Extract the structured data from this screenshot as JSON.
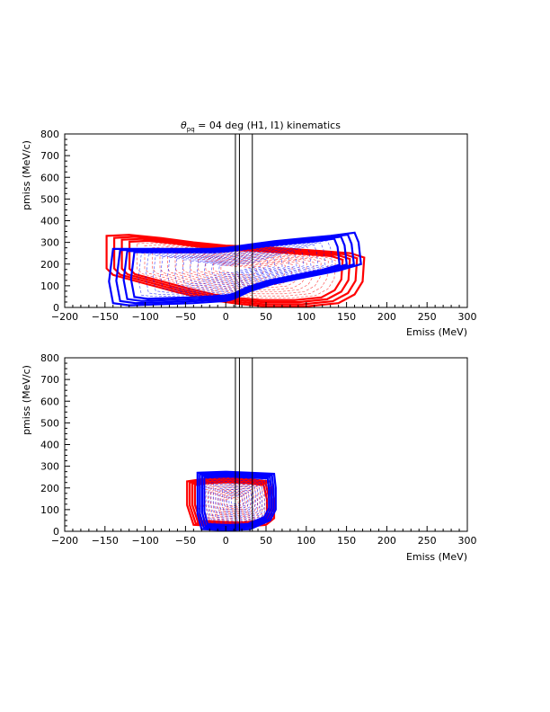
{
  "chart_data": [
    {
      "type": "contour",
      "title_pre": "θ",
      "title_sub": "pq",
      "title_post": " = 04 deg (H1, I1) kinematics",
      "xlabel": "Emiss  (MeV)",
      "ylabel": "pmiss  (MeV/c)",
      "xlim": [
        -200,
        300
      ],
      "ylim": [
        0,
        800
      ],
      "xticks": [
        -200,
        -150,
        -100,
        -50,
        0,
        50,
        100,
        150,
        200,
        250,
        300
      ],
      "yticks": [
        0,
        100,
        200,
        300,
        400,
        500,
        600,
        700,
        800
      ],
      "vertical_lines_x": [
        12,
        17,
        33
      ],
      "series": [
        {
          "color": "#ff0000",
          "outline": [
            [
              -148,
              330
            ],
            [
              -120,
              335
            ],
            [
              -80,
              320
            ],
            [
              -40,
              300
            ],
            [
              0,
              285
            ],
            [
              40,
              280
            ],
            [
              80,
              270
            ],
            [
              120,
              260
            ],
            [
              155,
              250
            ],
            [
              172,
              230
            ],
            [
              170,
              120
            ],
            [
              160,
              60
            ],
            [
              140,
              20
            ],
            [
              100,
              5
            ],
            [
              50,
              5
            ],
            [
              20,
              15
            ],
            [
              -20,
              35
            ],
            [
              -60,
              70
            ],
            [
              -100,
              110
            ],
            [
              -140,
              150
            ],
            [
              -148,
              180
            ]
          ]
        },
        {
          "color": "#0000ff",
          "outline": [
            [
              -140,
              270
            ],
            [
              -100,
              270
            ],
            [
              -60,
              270
            ],
            [
              -20,
              270
            ],
            [
              0,
              275
            ],
            [
              30,
              290
            ],
            [
              60,
              305
            ],
            [
              100,
              320
            ],
            [
              130,
              330
            ],
            [
              160,
              345
            ],
            [
              165,
              300
            ],
            [
              168,
              200
            ],
            [
              140,
              170
            ],
            [
              100,
              140
            ],
            [
              60,
              110
            ],
            [
              30,
              75
            ],
            [
              10,
              40
            ],
            [
              0,
              30
            ],
            [
              -40,
              20
            ],
            [
              -80,
              15
            ],
            [
              -120,
              10
            ],
            [
              -140,
              20
            ],
            [
              -145,
              120
            ]
          ]
        }
      ]
    },
    {
      "type": "contour",
      "xlabel": "Emiss  (MeV)",
      "ylabel": "pmiss  (MeV/c)",
      "xlim": [
        -200,
        300
      ],
      "ylim": [
        0,
        800
      ],
      "xticks": [
        -200,
        -150,
        -100,
        -50,
        0,
        50,
        100,
        150,
        200,
        250,
        300
      ],
      "yticks": [
        0,
        100,
        200,
        300,
        400,
        500,
        600,
        700,
        800
      ],
      "vertical_lines_x": [
        12,
        17,
        33
      ],
      "series": [
        {
          "color": "#ff0000",
          "outline": [
            [
              -48,
              230
            ],
            [
              -30,
              240
            ],
            [
              0,
              245
            ],
            [
              30,
              240
            ],
            [
              55,
              230
            ],
            [
              60,
              150
            ],
            [
              60,
              60
            ],
            [
              50,
              30
            ],
            [
              20,
              20
            ],
            [
              -10,
              25
            ],
            [
              -40,
              30
            ],
            [
              -48,
              120
            ]
          ]
        },
        {
          "color": "#0000ff",
          "outline": [
            [
              -35,
              270
            ],
            [
              0,
              275
            ],
            [
              30,
              270
            ],
            [
              60,
              265
            ],
            [
              62,
              200
            ],
            [
              62,
              100
            ],
            [
              55,
              50
            ],
            [
              30,
              10
            ],
            [
              0,
              5
            ],
            [
              -30,
              10
            ],
            [
              -35,
              80
            ],
            [
              -35,
              200
            ]
          ]
        }
      ]
    }
  ]
}
